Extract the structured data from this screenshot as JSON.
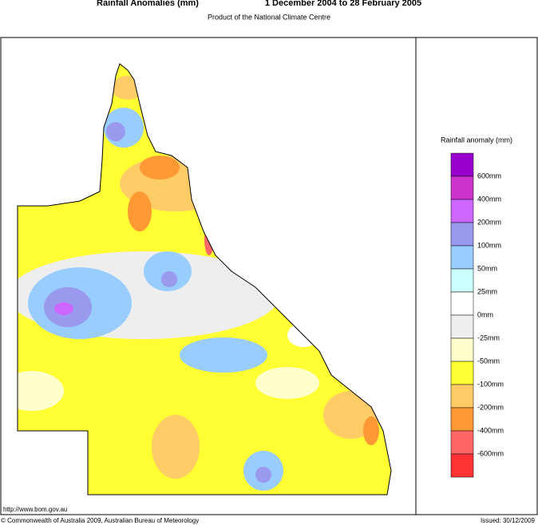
{
  "header": {
    "title": "Rainfall Anomalies (mm)",
    "period": "1 December 2004 to 28 February 2005",
    "subtitle": "Product of the National Climate Centre"
  },
  "legend": {
    "title": "Rainfall anomaly (mm)",
    "colors": [
      "#9900cc",
      "#cc33cc",
      "#cc66ff",
      "#9999ee",
      "#99ccff",
      "#ccffff",
      "#ffffff",
      "#eeeeee",
      "#ffffcc",
      "#ffff33",
      "#ffcc66",
      "#ff9933",
      "#ff6666",
      "#ff3333"
    ],
    "labels": [
      "600mm",
      "400mm",
      "200mm",
      "100mm",
      "50mm",
      "25mm",
      "0mm",
      "-25mm",
      "-50mm",
      "-100mm",
      "-200mm",
      "-400mm",
      "-600mm"
    ]
  },
  "footer": {
    "url": "http://www.bom.gov.au",
    "copyright": "© Commonwealth of Australia 2009, Australian Bureau of Meteorology",
    "issued": "Issued: 30/12/2009"
  }
}
